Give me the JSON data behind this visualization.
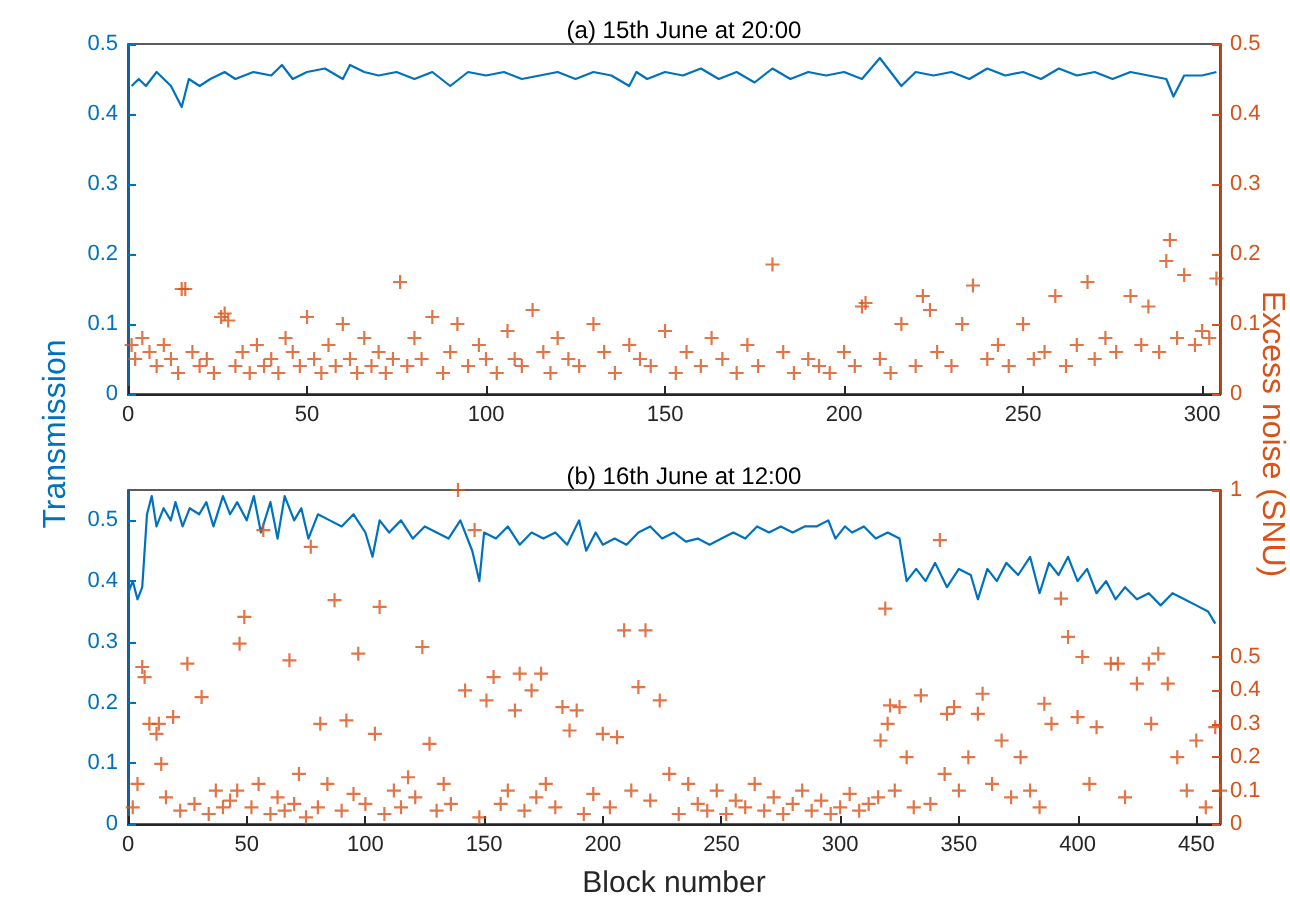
{
  "chart_data": [
    {
      "type": "line",
      "title": "(a) 15th June at 20:00",
      "ylabel": "Transmission",
      "y2label": "Excess noise (SNU)",
      "xlim": [
        0,
        305
      ],
      "xticks": [
        0,
        50,
        100,
        150,
        200,
        250,
        300
      ],
      "ylim": [
        0,
        0.5
      ],
      "yticks": [
        0,
        0.1,
        0.2,
        0.3,
        0.4,
        0.5
      ],
      "y2lim": [
        0,
        0.5
      ],
      "y2ticks": [
        0,
        0.1,
        0.2,
        0.3,
        0.4,
        0.5
      ],
      "series": [
        {
          "color": "#0072bd",
          "marker": "none",
          "x": [
            1,
            3,
            5,
            8,
            10,
            12,
            15,
            17,
            20,
            23,
            27,
            30,
            35,
            40,
            43,
            46,
            50,
            55,
            60,
            62,
            66,
            70,
            75,
            80,
            85,
            90,
            95,
            100,
            105,
            110,
            115,
            120,
            125,
            130,
            135,
            140,
            142,
            145,
            150,
            155,
            160,
            165,
            170,
            175,
            180,
            185,
            190,
            195,
            200,
            205,
            210,
            213,
            216,
            220,
            225,
            230,
            235,
            240,
            245,
            250,
            255,
            260,
            265,
            270,
            275,
            280,
            285,
            290,
            292,
            295,
            300,
            304
          ],
          "values": [
            0.44,
            0.45,
            0.44,
            0.46,
            0.45,
            0.44,
            0.41,
            0.45,
            0.44,
            0.45,
            0.46,
            0.45,
            0.46,
            0.455,
            0.47,
            0.45,
            0.46,
            0.465,
            0.45,
            0.47,
            0.46,
            0.455,
            0.46,
            0.45,
            0.46,
            0.44,
            0.46,
            0.455,
            0.46,
            0.45,
            0.455,
            0.46,
            0.45,
            0.46,
            0.455,
            0.44,
            0.46,
            0.45,
            0.46,
            0.455,
            0.465,
            0.45,
            0.46,
            0.445,
            0.465,
            0.45,
            0.46,
            0.455,
            0.46,
            0.45,
            0.48,
            0.46,
            0.44,
            0.46,
            0.455,
            0.46,
            0.45,
            0.465,
            0.455,
            0.46,
            0.45,
            0.465,
            0.455,
            0.46,
            0.45,
            0.46,
            0.455,
            0.45,
            0.425,
            0.455,
            0.455,
            0.46
          ]
        },
        {
          "type": "scatter",
          "color": "#d95319",
          "marker": "cross",
          "axis": "y2",
          "x": [
            1,
            2,
            4,
            6,
            8,
            10,
            12,
            14,
            15,
            16,
            18,
            20,
            22,
            24,
            26,
            27,
            28,
            30,
            32,
            34,
            36,
            38,
            40,
            42,
            44,
            46,
            48,
            50,
            52,
            54,
            56,
            58,
            60,
            62,
            64,
            66,
            68,
            70,
            72,
            74,
            76,
            78,
            80,
            82,
            85,
            88,
            90,
            92,
            95,
            98,
            100,
            103,
            106,
            108,
            110,
            113,
            116,
            118,
            120,
            123,
            126,
            130,
            133,
            136,
            140,
            143,
            146,
            150,
            153,
            156,
            160,
            163,
            166,
            170,
            173,
            176,
            180,
            183,
            186,
            190,
            193,
            196,
            200,
            203,
            205,
            206,
            210,
            213,
            216,
            220,
            222,
            224,
            226,
            230,
            233,
            236,
            240,
            243,
            246,
            250,
            253,
            256,
            259,
            262,
            265,
            268,
            270,
            273,
            276,
            280,
            283,
            285,
            288,
            290,
            291,
            293,
            295,
            298,
            300,
            302,
            304
          ],
          "values": [
            0.07,
            0.05,
            0.08,
            0.06,
            0.04,
            0.07,
            0.05,
            0.03,
            0.15,
            0.15,
            0.06,
            0.04,
            0.05,
            0.03,
            0.11,
            0.115,
            0.105,
            0.04,
            0.06,
            0.03,
            0.07,
            0.04,
            0.05,
            0.03,
            0.08,
            0.06,
            0.04,
            0.11,
            0.05,
            0.03,
            0.07,
            0.04,
            0.1,
            0.05,
            0.03,
            0.08,
            0.04,
            0.06,
            0.03,
            0.05,
            0.16,
            0.04,
            0.08,
            0.05,
            0.11,
            0.03,
            0.06,
            0.1,
            0.04,
            0.07,
            0.05,
            0.03,
            0.09,
            0.05,
            0.04,
            0.12,
            0.06,
            0.03,
            0.08,
            0.05,
            0.04,
            0.1,
            0.06,
            0.03,
            0.07,
            0.05,
            0.04,
            0.09,
            0.03,
            0.06,
            0.04,
            0.08,
            0.05,
            0.03,
            0.07,
            0.04,
            0.185,
            0.06,
            0.03,
            0.05,
            0.04,
            0.03,
            0.06,
            0.04,
            0.125,
            0.13,
            0.05,
            0.03,
            0.1,
            0.04,
            0.14,
            0.12,
            0.06,
            0.04,
            0.1,
            0.155,
            0.05,
            0.07,
            0.04,
            0.1,
            0.05,
            0.06,
            0.14,
            0.04,
            0.07,
            0.16,
            0.05,
            0.08,
            0.06,
            0.14,
            0.07,
            0.125,
            0.06,
            0.19,
            0.22,
            0.08,
            0.17,
            0.07,
            0.09,
            0.08,
            0.165
          ]
        }
      ]
    },
    {
      "type": "line",
      "title": "(b) 16th June at 12:00",
      "xlabel": "Block number",
      "xlim": [
        0,
        460
      ],
      "xticks": [
        0,
        50,
        100,
        150,
        200,
        250,
        300,
        350,
        400,
        450
      ],
      "ylim": [
        0,
        0.55
      ],
      "yticks": [
        0,
        0.1,
        0.2,
        0.3,
        0.4,
        0.5
      ],
      "y2lim": [
        0,
        1
      ],
      "y2ticks": [
        0,
        0.1,
        0.2,
        0.3,
        0.4,
        0.5,
        1
      ],
      "series": [
        {
          "color": "#0072bd",
          "marker": "none",
          "x": [
            0,
            2,
            4,
            6,
            8,
            10,
            12,
            15,
            18,
            20,
            23,
            26,
            30,
            33,
            36,
            40,
            43,
            46,
            50,
            53,
            56,
            60,
            63,
            66,
            70,
            73,
            76,
            80,
            85,
            90,
            95,
            100,
            103,
            106,
            110,
            115,
            120,
            125,
            130,
            135,
            140,
            145,
            148,
            150,
            155,
            160,
            165,
            170,
            175,
            180,
            185,
            190,
            193,
            197,
            200,
            205,
            210,
            215,
            220,
            225,
            230,
            235,
            240,
            245,
            250,
            255,
            260,
            265,
            270,
            275,
            280,
            285,
            290,
            295,
            298,
            302,
            305,
            310,
            315,
            320,
            325,
            328,
            332,
            336,
            340,
            345,
            350,
            355,
            358,
            362,
            366,
            370,
            375,
            380,
            384,
            388,
            392,
            396,
            400,
            404,
            408,
            412,
            416,
            420,
            425,
            430,
            435,
            440,
            445,
            450,
            455,
            458
          ],
          "values": [
            0.38,
            0.4,
            0.37,
            0.39,
            0.51,
            0.54,
            0.49,
            0.52,
            0.5,
            0.53,
            0.49,
            0.52,
            0.51,
            0.53,
            0.49,
            0.54,
            0.51,
            0.53,
            0.5,
            0.54,
            0.48,
            0.53,
            0.47,
            0.54,
            0.5,
            0.52,
            0.47,
            0.51,
            0.5,
            0.49,
            0.51,
            0.48,
            0.44,
            0.5,
            0.48,
            0.5,
            0.47,
            0.49,
            0.48,
            0.47,
            0.5,
            0.45,
            0.4,
            0.48,
            0.47,
            0.49,
            0.46,
            0.48,
            0.47,
            0.48,
            0.46,
            0.5,
            0.45,
            0.48,
            0.46,
            0.47,
            0.46,
            0.48,
            0.49,
            0.47,
            0.48,
            0.465,
            0.47,
            0.46,
            0.47,
            0.48,
            0.47,
            0.49,
            0.48,
            0.49,
            0.48,
            0.49,
            0.49,
            0.5,
            0.47,
            0.49,
            0.48,
            0.49,
            0.47,
            0.48,
            0.47,
            0.4,
            0.42,
            0.4,
            0.43,
            0.39,
            0.42,
            0.41,
            0.37,
            0.42,
            0.4,
            0.43,
            0.41,
            0.44,
            0.38,
            0.43,
            0.41,
            0.44,
            0.4,
            0.42,
            0.38,
            0.4,
            0.37,
            0.39,
            0.37,
            0.38,
            0.36,
            0.38,
            0.37,
            0.36,
            0.35,
            0.33
          ]
        },
        {
          "type": "scatter",
          "color": "#d95319",
          "marker": "cross",
          "axis": "y2",
          "x": [
            2,
            4,
            6,
            7,
            9,
            12,
            13,
            14,
            16,
            19,
            22,
            25,
            28,
            31,
            34,
            37,
            40,
            43,
            46,
            47,
            49,
            52,
            55,
            57,
            60,
            63,
            66,
            68,
            70,
            72,
            75,
            77,
            80,
            81,
            84,
            87,
            90,
            92,
            95,
            97,
            100,
            104,
            106,
            108,
            112,
            115,
            118,
            121,
            124,
            127,
            130,
            133,
            136,
            139,
            142,
            146,
            148,
            151,
            154,
            157,
            160,
            163,
            165,
            167,
            170,
            172,
            174,
            176,
            180,
            183,
            186,
            189,
            192,
            196,
            200,
            203,
            206,
            209,
            212,
            215,
            218,
            220,
            224,
            228,
            232,
            236,
            240,
            244,
            248,
            252,
            256,
            260,
            264,
            268,
            272,
            276,
            280,
            284,
            288,
            292,
            296,
            300,
            304,
            308,
            312,
            316,
            317,
            319,
            320,
            321,
            323,
            325,
            328,
            331,
            334,
            338,
            342,
            344,
            345,
            348,
            350,
            354,
            358,
            360,
            364,
            368,
            372,
            376,
            380,
            384,
            386,
            389,
            393,
            396,
            400,
            402,
            405,
            408,
            414,
            417,
            420,
            425,
            430,
            431,
            434,
            438,
            442,
            446,
            450,
            454,
            458,
            460
          ],
          "values": [
            0.05,
            0.12,
            0.47,
            0.44,
            0.3,
            0.27,
            0.3,
            0.18,
            0.08,
            0.32,
            0.04,
            0.48,
            0.06,
            0.38,
            0.03,
            0.1,
            0.05,
            0.07,
            0.1,
            0.54,
            0.62,
            0.05,
            0.12,
            0.88,
            0.03,
            0.08,
            0.04,
            0.49,
            0.06,
            0.15,
            0.02,
            0.83,
            0.05,
            0.3,
            0.12,
            0.67,
            0.04,
            0.31,
            0.09,
            0.51,
            0.06,
            0.27,
            0.65,
            0.03,
            0.1,
            0.05,
            0.14,
            0.08,
            0.53,
            0.24,
            0.04,
            0.12,
            0.06,
            1.0,
            0.4,
            0.88,
            0.02,
            0.37,
            0.44,
            0.06,
            0.1,
            0.34,
            0.45,
            0.04,
            0.4,
            0.08,
            0.45,
            0.12,
            0.05,
            0.35,
            0.28,
            0.34,
            0.03,
            0.09,
            0.27,
            0.05,
            0.26,
            0.58,
            0.1,
            0.41,
            0.58,
            0.07,
            0.37,
            0.15,
            0.03,
            0.12,
            0.06,
            0.04,
            0.1,
            0.03,
            0.07,
            0.05,
            0.12,
            0.04,
            0.08,
            0.03,
            0.06,
            0.1,
            0.04,
            0.07,
            0.03,
            0.05,
            0.09,
            0.04,
            0.06,
            0.08,
            0.25,
            0.645,
            0.3,
            0.355,
            0.1,
            0.35,
            0.2,
            0.05,
            0.385,
            0.06,
            0.85,
            0.15,
            0.33,
            0.35,
            0.1,
            0.2,
            0.33,
            0.39,
            0.12,
            0.25,
            0.08,
            0.2,
            0.1,
            0.05,
            0.36,
            0.3,
            0.675,
            0.56,
            0.32,
            0.5,
            0.12,
            0.29,
            0.48,
            0.48,
            0.08,
            0.42,
            0.48,
            0.3,
            0.51,
            0.42,
            0.2,
            0.1,
            0.25,
            0.05,
            0.29,
            0.1
          ]
        }
      ]
    }
  ]
}
